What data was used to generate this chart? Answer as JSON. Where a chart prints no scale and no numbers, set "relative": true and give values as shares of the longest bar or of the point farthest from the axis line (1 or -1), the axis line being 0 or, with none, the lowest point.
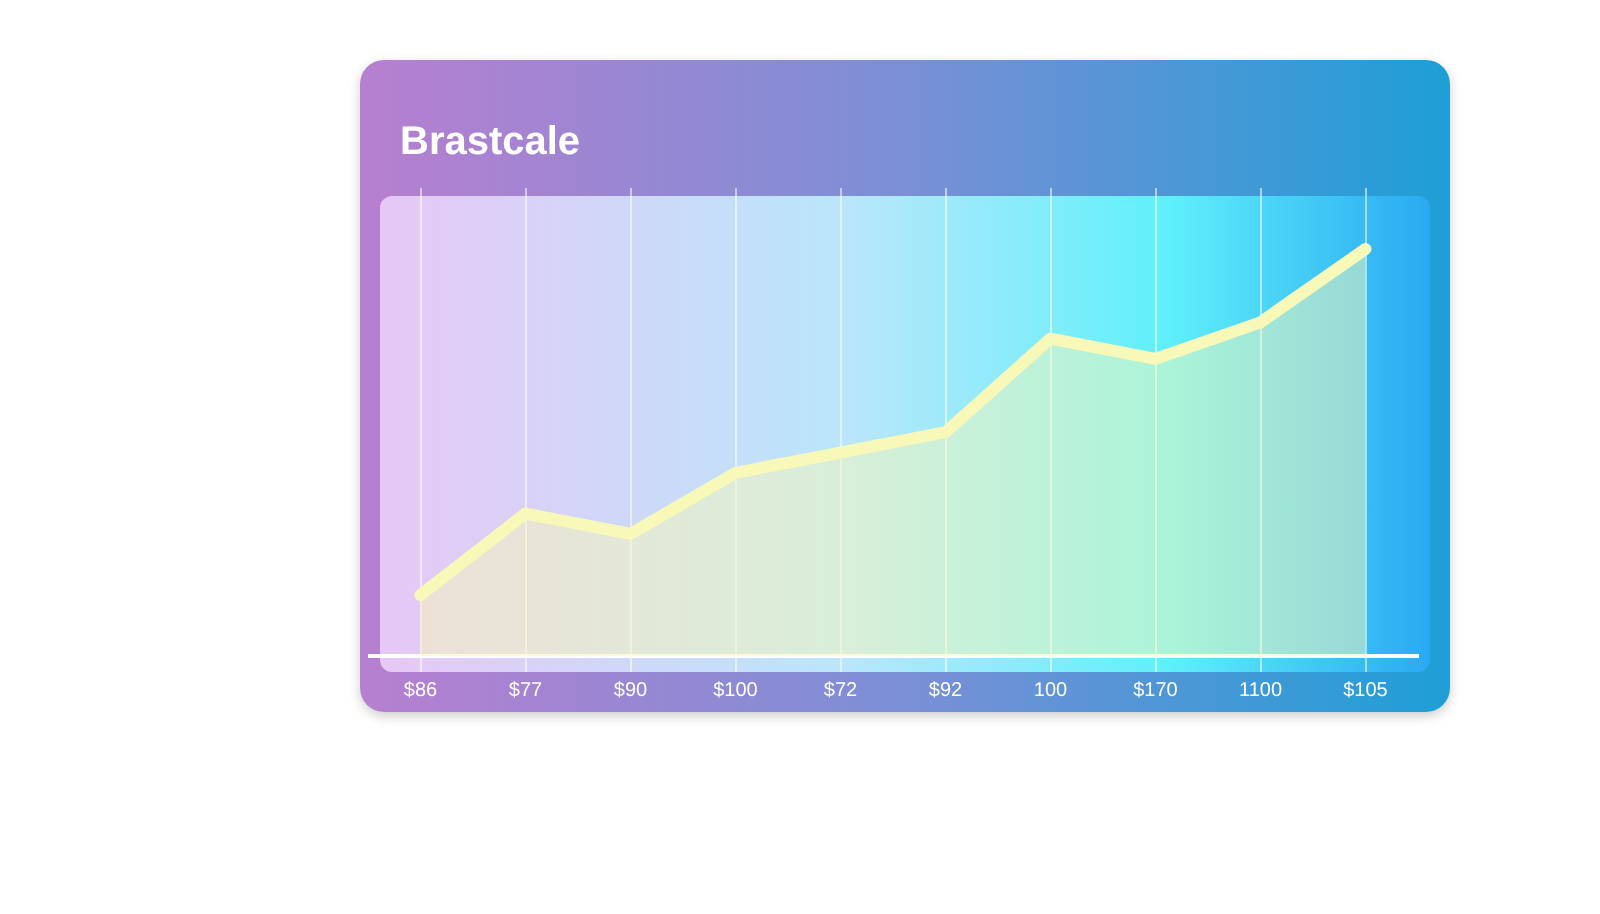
{
  "chart_data": {
    "type": "area",
    "title": "Brastcale",
    "relative": true,
    "categories": [
      "$86",
      "$77",
      "$90",
      "$100",
      "$72",
      "$92",
      "100",
      "$170",
      "1100",
      "$105"
    ],
    "series": [
      {
        "color": "#f8f8b8",
        "values": [
          0.15,
          0.35,
          0.3,
          0.45,
          0.5,
          0.55,
          0.78,
          0.73,
          0.82,
          1.0
        ]
      }
    ],
    "grid": "x",
    "legend": false,
    "marker": "none",
    "line_style": "solid"
  }
}
